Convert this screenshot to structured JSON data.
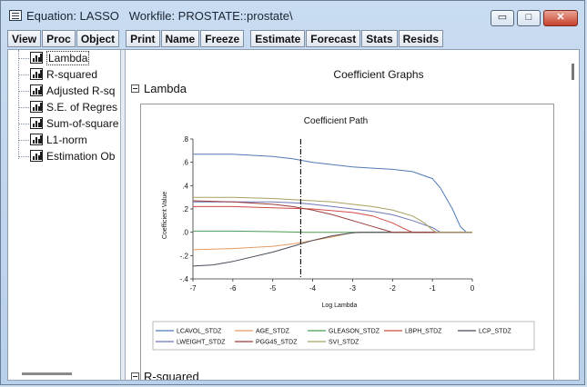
{
  "window": {
    "title": "Equation: LASSO   Workfile: PROSTATE::prostate\\",
    "minimize_label": "▭",
    "maximize_label": "□",
    "close_label": "✕"
  },
  "toolbar": {
    "groups": [
      [
        "View",
        "Proc",
        "Object"
      ],
      [
        "Print",
        "Name",
        "Freeze"
      ],
      [
        "Estimate",
        "Forecast",
        "Stats",
        "Resids"
      ]
    ]
  },
  "tree": {
    "items": [
      {
        "label": "Lambda",
        "selected": true
      },
      {
        "label": "R-squared",
        "selected": false
      },
      {
        "label": "Adjusted R-sq",
        "selected": false
      },
      {
        "label": "S.E. of Regres",
        "selected": false
      },
      {
        "label": "Sum-of-square",
        "selected": false
      },
      {
        "label": "L1-norm",
        "selected": false
      },
      {
        "label": "Estimation Ob",
        "selected": false
      }
    ]
  },
  "view": {
    "heading": "Coefficient Graphs",
    "section1": "Lambda",
    "section2": "R-squared"
  },
  "chart_data": {
    "type": "line",
    "title": "Coefficient Path",
    "xlabel": "Log Lambda",
    "ylabel": "Coefficient Value",
    "xlim": [
      -7,
      0
    ],
    "ylim": [
      -0.4,
      0.8
    ],
    "x_ticks": [
      "-7",
      "-6",
      "-5",
      "-4",
      "-3",
      "-2",
      "-1",
      "0"
    ],
    "y_ticks": [
      ".8",
      ".6",
      ".4",
      ".2",
      ".0",
      "-.2",
      "-.4"
    ],
    "vline_x": -4.3,
    "grid": false,
    "legend_position": "bottom",
    "series": [
      {
        "name": "LCAVOL_STDZ",
        "color": "#4f79b6",
        "points": [
          [
            -7,
            0.67
          ],
          [
            -6,
            0.67
          ],
          [
            -5,
            0.65
          ],
          [
            -4.5,
            0.63
          ],
          [
            -4,
            0.6
          ],
          [
            -3.5,
            0.58
          ],
          [
            -3,
            0.56
          ],
          [
            -2.5,
            0.55
          ],
          [
            -2,
            0.54
          ],
          [
            -1.5,
            0.52
          ],
          [
            -1,
            0.46
          ],
          [
            -0.8,
            0.38
          ],
          [
            -0.5,
            0.2
          ],
          [
            -0.3,
            0.05
          ],
          [
            -0.15,
            0
          ],
          [
            0,
            0
          ]
        ]
      },
      {
        "name": "AGE_STDZ",
        "color": "#e39a63",
        "points": [
          [
            -7,
            -0.15
          ],
          [
            -6,
            -0.14
          ],
          [
            -5,
            -0.12
          ],
          [
            -4.5,
            -0.1
          ],
          [
            -4,
            -0.07
          ],
          [
            -3.5,
            -0.04
          ],
          [
            -3.1,
            -0.01
          ],
          [
            -2.9,
            0
          ],
          [
            0,
            0
          ]
        ]
      },
      {
        "name": "GLEASON_STDZ",
        "color": "#4b9b51",
        "points": [
          [
            -7,
            0.01
          ],
          [
            -6,
            0.01
          ],
          [
            -5,
            0.005
          ],
          [
            -4.5,
            0.002
          ],
          [
            -4.2,
            0
          ],
          [
            0,
            0
          ]
        ]
      },
      {
        "name": "LBPH_STDZ",
        "color": "#cf4945",
        "points": [
          [
            -7,
            0.22
          ],
          [
            -6,
            0.22
          ],
          [
            -5,
            0.21
          ],
          [
            -4,
            0.2
          ],
          [
            -3,
            0.17
          ],
          [
            -2.5,
            0.14
          ],
          [
            -2,
            0.08
          ],
          [
            -1.7,
            0.03
          ],
          [
            -1.5,
            0
          ],
          [
            0,
            0
          ]
        ]
      },
      {
        "name": "LCP_STDZ",
        "color": "#4a4a58",
        "points": [
          [
            -7,
            -0.29
          ],
          [
            -6.5,
            -0.28
          ],
          [
            -6,
            -0.25
          ],
          [
            -5,
            -0.17
          ],
          [
            -4.5,
            -0.12
          ],
          [
            -4,
            -0.07
          ],
          [
            -3.5,
            -0.03
          ],
          [
            -3,
            -0.005
          ],
          [
            -2.8,
            0
          ],
          [
            0,
            0
          ]
        ]
      },
      {
        "name": "LWEIGHT_STDZ",
        "color": "#6e76b8",
        "points": [
          [
            -7,
            0.26
          ],
          [
            -6,
            0.26
          ],
          [
            -5,
            0.26
          ],
          [
            -4.3,
            0.25
          ],
          [
            -4,
            0.24
          ],
          [
            -3.5,
            0.22
          ],
          [
            -3,
            0.2
          ],
          [
            -2.5,
            0.18
          ],
          [
            -2,
            0.15
          ],
          [
            -1.5,
            0.1
          ],
          [
            -1,
            0.04
          ],
          [
            -0.8,
            0
          ],
          [
            0,
            0
          ]
        ]
      },
      {
        "name": "PGG45_STDZ",
        "color": "#9a3b3b",
        "points": [
          [
            -7,
            0.27
          ],
          [
            -6,
            0.26
          ],
          [
            -5,
            0.24
          ],
          [
            -4.5,
            0.22
          ],
          [
            -4,
            0.19
          ],
          [
            -3.5,
            0.15
          ],
          [
            -3,
            0.1
          ],
          [
            -2.5,
            0.05
          ],
          [
            -2.2,
            0.02
          ],
          [
            -2,
            0
          ],
          [
            0,
            0
          ]
        ]
      },
      {
        "name": "SVI_STDZ",
        "color": "#a8a060",
        "points": [
          [
            -7,
            0.3
          ],
          [
            -6,
            0.3
          ],
          [
            -5,
            0.29
          ],
          [
            -4.5,
            0.28
          ],
          [
            -4,
            0.27
          ],
          [
            -3.5,
            0.26
          ],
          [
            -3,
            0.24
          ],
          [
            -2.5,
            0.22
          ],
          [
            -2,
            0.19
          ],
          [
            -1.5,
            0.14
          ],
          [
            -1.2,
            0.08
          ],
          [
            -1,
            0.02
          ],
          [
            -0.9,
            0
          ],
          [
            0,
            0
          ]
        ]
      }
    ]
  }
}
